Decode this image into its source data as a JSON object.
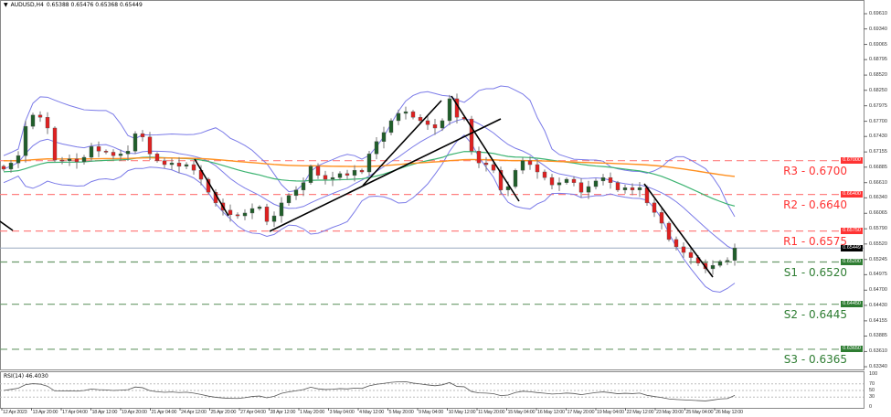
{
  "header": {
    "symbol": "AUDUSD,H4",
    "ohlc": "0.65388 0.65476 0.65368 0.65449"
  },
  "rsi": {
    "label": "RSI(14) 46.4030",
    "levels": [
      "100",
      "70",
      "50",
      "30",
      "0"
    ]
  },
  "colors": {
    "bull": "#1f5e2a",
    "bear": "#e02020",
    "resistance": "#ff3333",
    "support": "#2e7d32",
    "bands": "#7b7be8",
    "ma_green": "#3cb371",
    "ma_orange": "#ff9020",
    "price_line": "#9aa8c0"
  },
  "levels": [
    {
      "label": "R3 - 0.6700",
      "value": 0.67,
      "tag": "0.67000",
      "type": "resistance"
    },
    {
      "label": "R2 - 0.6640",
      "value": 0.664,
      "tag": "0.66400",
      "type": "resistance"
    },
    {
      "label": "R1 - 0.6575",
      "value": 0.6575,
      "tag": "0.65750",
      "type": "resistance"
    },
    {
      "label": "S1 - 0.6520",
      "value": 0.652,
      "tag": "0.65200",
      "type": "support"
    },
    {
      "label": "S2 - 0.6445",
      "value": 0.6445,
      "tag": "0.64450",
      "type": "support"
    },
    {
      "label": "S3 - 0.6365",
      "value": 0.6365,
      "tag": "0.63650",
      "type": "support"
    }
  ],
  "current_price": {
    "value": 0.65449,
    "tag": "0.65449"
  },
  "chart_data": {
    "type": "candlestick",
    "symbol": "AUDUSD",
    "timeframe": "H4",
    "y_ticks": [
      "0.69610",
      "0.69340",
      "0.69065",
      "0.68795",
      "0.68520",
      "0.68250",
      "0.67975",
      "0.67700",
      "0.67430",
      "0.67155",
      "0.66885",
      "0.66610",
      "0.66340",
      "0.66065",
      "0.65790",
      "0.65520",
      "0.65245",
      "0.64975",
      "0.64700",
      "0.64430",
      "0.64155",
      "0.63885",
      "0.63610",
      "0.63340"
    ],
    "x_ticks": [
      "12 Apr 2023",
      "13 Apr 20:00",
      "17 Apr 04:00",
      "18 Apr 12:00",
      "19 Apr 20:00",
      "21 Apr 04:00",
      "24 Apr 12:00",
      "25 Apr 20:00",
      "27 Apr 04:00",
      "28 Apr 12:00",
      "1 May 20:00",
      "3 May 04:00",
      "4 May 12:00",
      "5 May 20:00",
      "9 May 04:00",
      "10 May 12:00",
      "11 May 20:00",
      "15 May 04:00",
      "16 May 12:00",
      "17 May 20:00",
      "19 May 04:00",
      "22 May 12:00",
      "23 May 20:00",
      "25 May 04:00",
      "26 May 12:00"
    ],
    "closes": [
      0.6685,
      0.6696,
      0.6709,
      0.6761,
      0.6781,
      0.6777,
      0.6758,
      0.6701,
      0.67,
      0.6703,
      0.6698,
      0.6706,
      0.6725,
      0.6717,
      0.6715,
      0.6709,
      0.6712,
      0.6717,
      0.6748,
      0.6742,
      0.6712,
      0.67,
      0.6693,
      0.6696,
      0.669,
      0.6693,
      0.6683,
      0.6667,
      0.6644,
      0.6625,
      0.6612,
      0.6604,
      0.6602,
      0.6607,
      0.6615,
      0.6618,
      0.6592,
      0.6602,
      0.6625,
      0.6638,
      0.6648,
      0.6661,
      0.669,
      0.6674,
      0.6667,
      0.667,
      0.6677,
      0.6674,
      0.6683,
      0.668,
      0.6712,
      0.6734,
      0.675,
      0.6771,
      0.6784,
      0.6787,
      0.6777,
      0.6771,
      0.6764,
      0.6758,
      0.6771,
      0.681,
      0.6777,
      0.6774,
      0.6717,
      0.6696,
      0.6693,
      0.6683,
      0.6648,
      0.6654,
      0.6683,
      0.67,
      0.6693,
      0.668,
      0.667,
      0.6657,
      0.6661,
      0.6667,
      0.6661,
      0.6644,
      0.6654,
      0.6664,
      0.667,
      0.6661,
      0.6648,
      0.6652,
      0.6648,
      0.6652,
      0.6625,
      0.6608,
      0.6589,
      0.656,
      0.6547,
      0.6537,
      0.6528,
      0.6518,
      0.6508,
      0.6514,
      0.6521,
      0.6523,
      0.65449
    ],
    "indicators": [
      "Bollinger Bands",
      "Moving Average (green)",
      "Moving Average (orange)",
      "RSI(14)"
    ],
    "grid": false
  }
}
